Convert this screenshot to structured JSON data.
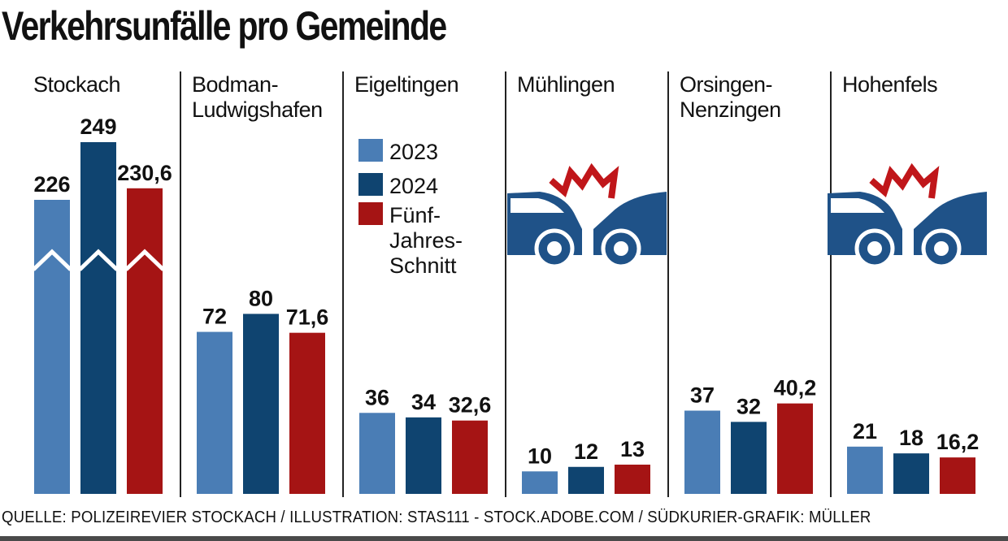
{
  "title": "Verkehrsunfälle pro Gemeinde",
  "source": "QUELLE: POLIZEIREVIER STOCKACH / ILLUSTRATION: STAS111 - STOCK.ADOBE.COM / SÜDKURIER-GRAFIK: MÜLLER",
  "colors": {
    "2023": "#4a7db5",
    "2024": "#0f4470",
    "avg": "#a51414",
    "text": "#111111",
    "divider": "#222222"
  },
  "chart_data": {
    "type": "bar",
    "title": "Verkehrsunfälle pro Gemeinde",
    "legend": {
      "placement": "inside third panel, top",
      "entries": [
        {
          "key": "2023",
          "lines": [
            "2023"
          ]
        },
        {
          "key": "2024",
          "lines": [
            "2024"
          ]
        },
        {
          "key": "avg",
          "lines": [
            "Fünf-",
            "Jahres-",
            "Schnitt"
          ]
        }
      ]
    },
    "categories": [
      {
        "name": "Stockach",
        "lines": [
          "Stockach"
        ]
      },
      {
        "name": "Bodman-Ludwigshafen",
        "lines": [
          "Bodman-",
          "Ludwigshafen"
        ]
      },
      {
        "name": "Eigeltingen",
        "lines": [
          "Eigeltingen"
        ]
      },
      {
        "name": "Mühlingen",
        "lines": [
          "Mühlingen"
        ]
      },
      {
        "name": "Orsingen-Nenzingen",
        "lines": [
          "Orsingen-",
          "Nenzingen"
        ]
      },
      {
        "name": "Hohenfels",
        "lines": [
          "Hohenfels"
        ]
      }
    ],
    "series": [
      {
        "name": "2023",
        "key": "2023",
        "values": [
          226,
          72,
          36,
          10,
          37,
          21
        ],
        "labels": [
          "226",
          "72",
          "36",
          "10",
          "37",
          "21"
        ]
      },
      {
        "name": "2024",
        "key": "2024",
        "values": [
          249,
          80,
          34,
          12,
          32,
          18
        ],
        "labels": [
          "249",
          "80",
          "34",
          "12",
          "32",
          "18"
        ]
      },
      {
        "name": "Fünf-Jahres-Schnitt",
        "key": "avg",
        "values": [
          230.6,
          71.6,
          32.6,
          13,
          40.2,
          16.2
        ],
        "labels": [
          "230,6",
          "71,6",
          "32,6",
          "13",
          "40,2",
          "16,2"
        ]
      }
    ],
    "axis_break": {
      "category": "Stockach"
    },
    "grid": false,
    "illustrations": [
      "car-crash-icon",
      "car-crash-icon"
    ]
  }
}
